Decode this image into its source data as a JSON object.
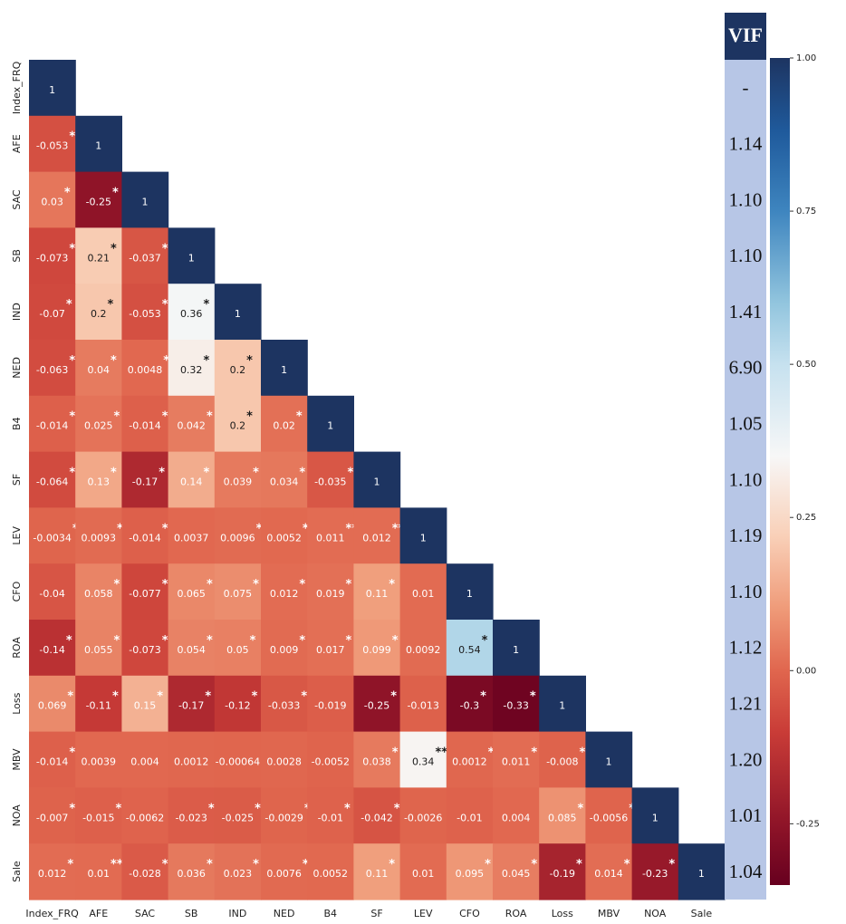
{
  "chart_data": {
    "type": "heatmap",
    "title": "",
    "variables": [
      "Index_FRQ",
      "AFE",
      "SAC",
      "SB",
      "IND",
      "NED",
      "B4",
      "SF",
      "LEV",
      "CFO",
      "ROA",
      "Loss",
      "MBV",
      "NOA",
      "Sale"
    ],
    "matrix": [
      [
        {
          "v": "1",
          "s": ""
        }
      ],
      [
        {
          "v": "-0.053",
          "s": "*"
        },
        {
          "v": "1",
          "s": ""
        }
      ],
      [
        {
          "v": "0.03",
          "s": "*"
        },
        {
          "v": "-0.25",
          "s": "*"
        },
        {
          "v": "1",
          "s": ""
        }
      ],
      [
        {
          "v": "-0.073",
          "s": "*"
        },
        {
          "v": "0.21",
          "s": "*"
        },
        {
          "v": "-0.037",
          "s": "*"
        },
        {
          "v": "1",
          "s": ""
        }
      ],
      [
        {
          "v": "-0.07",
          "s": "*"
        },
        {
          "v": "0.2",
          "s": "*"
        },
        {
          "v": "-0.053",
          "s": "*"
        },
        {
          "v": "0.36",
          "s": "*"
        },
        {
          "v": "1",
          "s": ""
        }
      ],
      [
        {
          "v": "-0.063",
          "s": "*"
        },
        {
          "v": "0.04",
          "s": "*"
        },
        {
          "v": "0.0048",
          "s": "*"
        },
        {
          "v": "0.32",
          "s": "*"
        },
        {
          "v": "0.2",
          "s": "*"
        },
        {
          "v": "1",
          "s": ""
        }
      ],
      [
        {
          "v": "-0.014",
          "s": "*"
        },
        {
          "v": "0.025",
          "s": "*"
        },
        {
          "v": "-0.014",
          "s": "*"
        },
        {
          "v": "0.042",
          "s": "*"
        },
        {
          "v": "0.2",
          "s": "*"
        },
        {
          "v": "0.02",
          "s": "*"
        },
        {
          "v": "1",
          "s": ""
        }
      ],
      [
        {
          "v": "-0.064",
          "s": "*"
        },
        {
          "v": "0.13",
          "s": "*"
        },
        {
          "v": "-0.17",
          "s": "*"
        },
        {
          "v": "0.14",
          "s": "*"
        },
        {
          "v": "0.039",
          "s": "*"
        },
        {
          "v": "0.034",
          "s": "*"
        },
        {
          "v": "-0.035",
          "s": "*"
        },
        {
          "v": "1",
          "s": ""
        }
      ],
      [
        {
          "v": "-0.0034",
          "s": "*"
        },
        {
          "v": "0.0093",
          "s": "***"
        },
        {
          "v": "-0.014",
          "s": "*"
        },
        {
          "v": "0.0037",
          "s": ""
        },
        {
          "v": "0.0096",
          "s": "**"
        },
        {
          "v": "0.0052",
          "s": "**"
        },
        {
          "v": "0.011",
          "s": "**"
        },
        {
          "v": "0.012",
          "s": "**"
        },
        {
          "v": "1",
          "s": ""
        }
      ],
      [
        {
          "v": "-0.04",
          "s": ""
        },
        {
          "v": "0.058",
          "s": "*"
        },
        {
          "v": "-0.077",
          "s": "*"
        },
        {
          "v": "0.065",
          "s": "*"
        },
        {
          "v": "0.075",
          "s": "*"
        },
        {
          "v": "0.012",
          "s": "*"
        },
        {
          "v": "0.019",
          "s": "*"
        },
        {
          "v": "0.11",
          "s": "*"
        },
        {
          "v": "0.01",
          "s": ""
        },
        {
          "v": "1",
          "s": ""
        }
      ],
      [
        {
          "v": "-0.14",
          "s": "*"
        },
        {
          "v": "0.055",
          "s": "*"
        },
        {
          "v": "-0.073",
          "s": "*"
        },
        {
          "v": "0.054",
          "s": "*"
        },
        {
          "v": "0.05",
          "s": "*"
        },
        {
          "v": "0.009",
          "s": "*"
        },
        {
          "v": "0.017",
          "s": "*"
        },
        {
          "v": "0.099",
          "s": "*"
        },
        {
          "v": "0.0092",
          "s": ""
        },
        {
          "v": "0.54",
          "s": "*"
        },
        {
          "v": "1",
          "s": ""
        }
      ],
      [
        {
          "v": "0.069",
          "s": "*"
        },
        {
          "v": "-0.11",
          "s": "*"
        },
        {
          "v": "0.15",
          "s": "*"
        },
        {
          "v": "-0.17",
          "s": "*"
        },
        {
          "v": "-0.12",
          "s": "*"
        },
        {
          "v": "-0.033",
          "s": "*"
        },
        {
          "v": "-0.019",
          "s": ""
        },
        {
          "v": "-0.25",
          "s": "*"
        },
        {
          "v": "-0.013",
          "s": ""
        },
        {
          "v": "-0.3",
          "s": "*"
        },
        {
          "v": "-0.33",
          "s": "*"
        },
        {
          "v": "1",
          "s": ""
        }
      ],
      [
        {
          "v": "-0.014",
          "s": "*"
        },
        {
          "v": "0.0039",
          "s": ""
        },
        {
          "v": "0.004",
          "s": ""
        },
        {
          "v": "0.0012",
          "s": ""
        },
        {
          "v": "-0.00064",
          "s": ""
        },
        {
          "v": "0.0028",
          "s": ""
        },
        {
          "v": "-0.0052",
          "s": ""
        },
        {
          "v": "0.038",
          "s": "*"
        },
        {
          "v": "0.34",
          "s": "***"
        },
        {
          "v": "0.0012",
          "s": "*"
        },
        {
          "v": "0.011",
          "s": "*"
        },
        {
          "v": "-0.008",
          "s": "*"
        },
        {
          "v": "1",
          "s": ""
        }
      ],
      [
        {
          "v": "-0.007",
          "s": "*"
        },
        {
          "v": "-0.015",
          "s": "**"
        },
        {
          "v": "-0.0062",
          "s": ""
        },
        {
          "v": "-0.023",
          "s": "***"
        },
        {
          "v": "-0.025",
          "s": "*"
        },
        {
          "v": "-0.0029",
          "s": "*"
        },
        {
          "v": "-0.01",
          "s": "*"
        },
        {
          "v": "-0.042",
          "s": "*"
        },
        {
          "v": "-0.0026",
          "s": ""
        },
        {
          "v": "-0.01",
          "s": ""
        },
        {
          "v": "0.004",
          "s": ""
        },
        {
          "v": "0.085",
          "s": "*"
        },
        {
          "v": "-0.0056",
          "s": "*"
        },
        {
          "v": "1",
          "s": ""
        }
      ],
      [
        {
          "v": "0.012",
          "s": "*"
        },
        {
          "v": "0.01",
          "s": "**"
        },
        {
          "v": "-0.028",
          "s": "*"
        },
        {
          "v": "0.036",
          "s": "*"
        },
        {
          "v": "0.023",
          "s": "*"
        },
        {
          "v": "0.0076",
          "s": "*"
        },
        {
          "v": "0.0052",
          "s": ""
        },
        {
          "v": "0.11",
          "s": "*"
        },
        {
          "v": "0.01",
          "s": ""
        },
        {
          "v": "0.095",
          "s": "*"
        },
        {
          "v": "0.045",
          "s": "*"
        },
        {
          "v": "-0.19",
          "s": "*"
        },
        {
          "v": "0.014",
          "s": "*"
        },
        {
          "v": "-0.23",
          "s": "*"
        },
        {
          "v": "1",
          "s": ""
        }
      ]
    ],
    "vif": {
      "title": "VIF",
      "values": [
        "-",
        "1.14",
        "1.10",
        "1.10",
        "1.41",
        "6.90",
        "1.05",
        "1.10",
        "1.19",
        "1.10",
        "1.12",
        "1.21",
        "1.20",
        "1.01",
        "1.04"
      ]
    },
    "colorbar": {
      "range": [
        -0.35,
        1.0
      ],
      "ticks": [
        "1.00",
        "0.75",
        "0.50",
        "0.25",
        "0.00",
        "-0.25"
      ],
      "tick_values": [
        1.0,
        0.75,
        0.5,
        0.25,
        0.0,
        -0.25
      ],
      "colors": {
        "low": "#67001f",
        "mid_low": "#e07a5f",
        "center": "#f7f7f7",
        "mid_high": "#92c5de",
        "high": "#1d3461"
      }
    }
  }
}
